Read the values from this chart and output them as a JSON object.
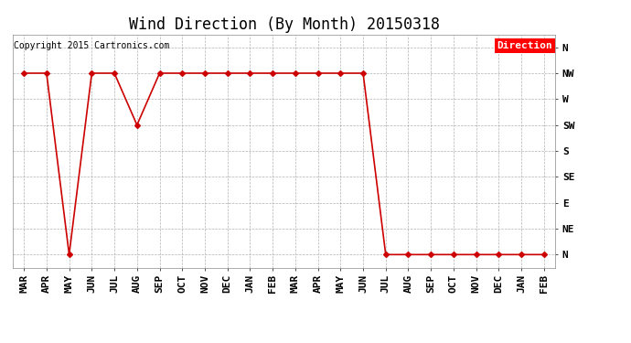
{
  "title": "Wind Direction (By Month) 20150318",
  "copyright": "Copyright 2015 Cartronics.com",
  "legend_label": "Direction",
  "legend_color": "#ff0000",
  "legend_text_color": "#ffffff",
  "line_color": "#cc0000",
  "background_color": "#ffffff",
  "x_labels": [
    "MAR",
    "APR",
    "MAY",
    "JUN",
    "JUL",
    "AUG",
    "SEP",
    "OCT",
    "NOV",
    "DEC",
    "JAN",
    "FEB",
    "MAR",
    "APR",
    "MAY",
    "JUN",
    "JUL",
    "AUG",
    "SEP",
    "OCT",
    "NOV",
    "DEC",
    "JAN",
    "FEB"
  ],
  "y_tick_labels": [
    "N",
    "NW",
    "W",
    "SW",
    "S",
    "SE",
    "E",
    "NE",
    "N"
  ],
  "y_tick_values": [
    8,
    7,
    6,
    5,
    4,
    3,
    2,
    1,
    0
  ],
  "data_values": [
    7,
    7,
    0,
    7,
    7,
    5,
    7,
    7,
    7,
    7,
    7,
    7,
    7,
    7,
    7,
    7,
    0,
    0,
    0,
    0,
    0,
    0,
    0,
    0
  ],
  "grid_color": "#aaaaaa",
  "title_fontsize": 12,
  "tick_fontsize": 8,
  "copyright_fontsize": 7,
  "legend_fontsize": 8,
  "marker": "D",
  "marker_size": 3,
  "linewidth": 1.2
}
